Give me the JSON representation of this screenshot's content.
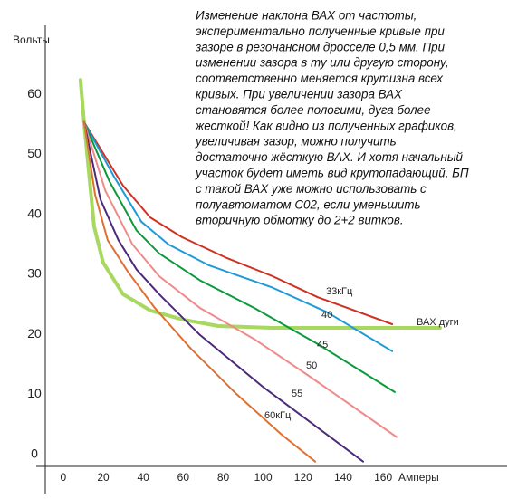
{
  "chart_data": {
    "type": "line",
    "y_label": "Вольты",
    "x_label": "Амперы",
    "annotation": [
      "Изменение наклона ВАХ от частоты,",
      "экспериментально полученные кривые при",
      "зазоре в резонансном дросселе 0,5 мм. При",
      "изменении зазора в ту или другую сторону,",
      "соответственно меняется крутизна всех",
      "кривых. При увеличении зазора ВАХ",
      "становятся более пологими, дуга более",
      "жесткой! Как видно из полученных графиков,",
      "увеличивая зазор, можно получить",
      "достаточно жёсткую ВАХ. И хотя начальный",
      "участок будет иметь вид крутопадающий, БП",
      "с такой ВАХ уже можно использовать с",
      "полуавтоматом С02, если уменьшить",
      "вторичную обмотку до 2+2 витков."
    ],
    "xlim": [
      -9,
      222
    ],
    "ylim": [
      -2,
      70
    ],
    "xticks": [
      0,
      20,
      40,
      60,
      80,
      100,
      120,
      140,
      160
    ],
    "yticks": [
      0,
      10,
      20,
      30,
      40,
      50,
      60
    ],
    "series": [
      {
        "name": "33кГц",
        "color": "#d03020",
        "x": [
          10.4,
          29.9,
          43.5,
          59.4,
          82,
          104.7,
          127.3,
          164.5
        ],
        "values": [
          55.4,
          44.8,
          39.5,
          36.2,
          32.7,
          29.7,
          26.2,
          21.7
        ]
      },
      {
        "name": "40",
        "color": "#1e9ad6",
        "x": [
          10.4,
          25.4,
          39,
          52.6,
          73,
          104.7,
          131.9,
          164.5
        ],
        "values": [
          55.4,
          46.3,
          38.8,
          35,
          31.5,
          27.8,
          23.7,
          17.2
        ]
      },
      {
        "name": "45",
        "color": "#0a9a3c",
        "x": [
          10.4,
          23.1,
          36.7,
          48,
          68.4,
          95.6,
          127.3,
          165.8
        ],
        "values": [
          55.4,
          45.5,
          37.3,
          33.5,
          29,
          24.4,
          18.4,
          10.4
        ]
      },
      {
        "name": "50",
        "color": "#f08a8a",
        "x": [
          10.4,
          21,
          34.6,
          48,
          68.4,
          95.6,
          122.8,
          166.7
        ],
        "values": [
          55.4,
          44,
          35,
          29.7,
          24.4,
          19.2,
          13.1,
          2.9
        ]
      },
      {
        "name": "55",
        "color": "#4b2a7a",
        "x": [
          10.4,
          18.6,
          27.6,
          36.7,
          48,
          68.4,
          100.1,
          150
        ],
        "values": [
          55.4,
          42.5,
          35.7,
          30.8,
          26.7,
          19.9,
          11.2,
          -1.2
        ]
      },
      {
        "name": "60кГц",
        "color": "#e07030",
        "x": [
          10.4,
          15.9,
          22.2,
          32.2,
          45.8,
          63.9,
          86.5,
          109.2,
          126
        ],
        "values": [
          55.4,
          43.3,
          35.7,
          30.5,
          24.4,
          17.6,
          10.1,
          3.3,
          -1.2
        ]
      },
      {
        "name": "ВАХ дуги",
        "color": "#a8d860",
        "x": [
          8.6,
          10.4,
          15.4,
          19.9,
          29.9,
          43.5,
          59.4,
          77.5,
          104.7,
          150,
          188.5
        ],
        "values": [
          62.4,
          55.4,
          38,
          32,
          26.7,
          24,
          22.5,
          21.4,
          21.1,
          21.1,
          21.1
        ]
      }
    ]
  }
}
